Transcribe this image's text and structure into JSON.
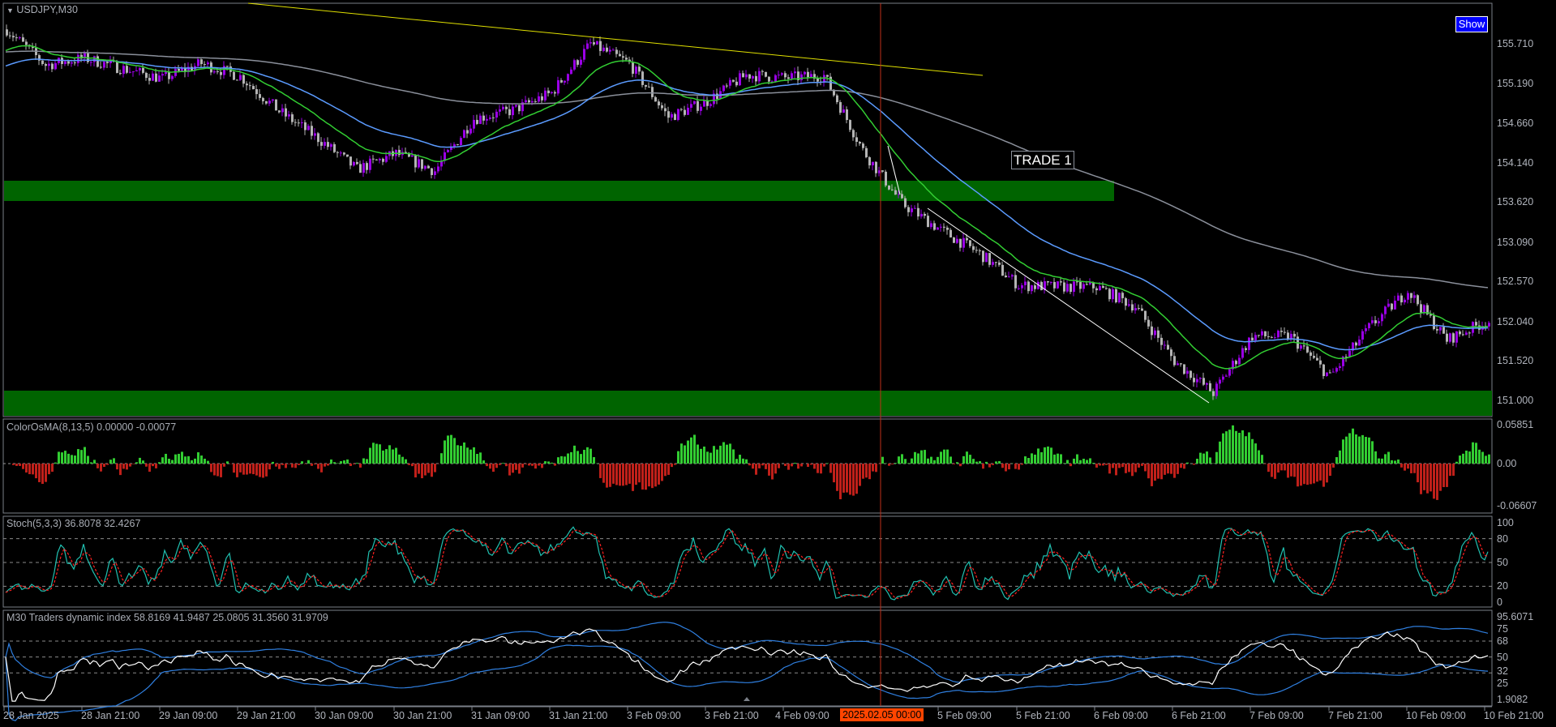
{
  "window": {
    "symbol_title": "USDJPY,M30",
    "show_button": "Show"
  },
  "annotations": {
    "trade_label": "TRADE 1",
    "cursor_time": "2025.02.05 00:00"
  },
  "colors": {
    "bull_candle": "#9a00e6",
    "bear_candle": "#b4b4b4",
    "ema_fast": "#32cd32",
    "ema_mid": "#5b9bff",
    "ema_slow": "#8a8f9a",
    "zone": "#006400",
    "trendline_upper": "#e0e000",
    "trendline_lower": "#ffffff",
    "vline": "#c0301a",
    "osma_up": "#32cd32",
    "osma_down": "#c0201a",
    "stoch_main": "#20c0b0",
    "stoch_signal": "#ff2020",
    "tdi_price": "#ffffff",
    "tdi_bands": "#2f7fe0"
  },
  "chart_data": [
    {
      "type": "candlestick",
      "title": "USDJPY,M30",
      "timeframe": "M30",
      "x_tick_labels": [
        "28 Jan 2025",
        "28 Jan 21:00",
        "29 Jan 09:00",
        "29 Jan 21:00",
        "30 Jan 09:00",
        "30 Jan 21:00",
        "31 Jan 09:00",
        "31 Jan 21:00",
        "3 Feb 09:00",
        "3 Feb 21:00",
        "4 Feb 09:00",
        "5 Feb 09:00",
        "5 Feb 21:00",
        "6 Feb 09:00",
        "6 Feb 21:00",
        "7 Feb 09:00",
        "7 Feb 21:00",
        "10 Feb 09:00",
        "10 Feb 21:00"
      ],
      "y_tick_labels": [
        "155.710",
        "155.190",
        "154.660",
        "154.140",
        "153.620",
        "153.090",
        "152.570",
        "152.040",
        "151.520",
        "151.000"
      ],
      "ylim": [
        151.0,
        155.71
      ],
      "approx_closes_every_6h": [
        155.9,
        155.43,
        155.52,
        155.38,
        155.25,
        155.45,
        155.28,
        154.82,
        154.46,
        154.05,
        154.26,
        154.03,
        154.72,
        154.83,
        155.06,
        155.71,
        155.45,
        154.74,
        154.95,
        155.3,
        155.26,
        155.29,
        154.3,
        153.6,
        153.25,
        152.94,
        152.52,
        152.5,
        152.5,
        152.24,
        151.52,
        151.1,
        151.85,
        151.84,
        151.31,
        151.96,
        152.45,
        151.8,
        152.04,
        152.0
      ],
      "zones": [
        {
          "from": 153.62,
          "to": 153.93
        },
        {
          "from": 150.9,
          "to": 151.25
        }
      ],
      "moving_averages": [
        "fast",
        "mid",
        "slow"
      ]
    },
    {
      "type": "bar",
      "title": "ColorOsMA(8,13,5) 0.00000 -0.00077",
      "y_tick_labels": [
        "0.05851",
        "0.00",
        "-0.06607"
      ],
      "ylim": [
        -0.06607,
        0.05851
      ]
    },
    {
      "type": "line",
      "title": "Stoch(5,3,3) 36.8078 32.4267",
      "y_tick_labels": [
        "100",
        "80",
        "50",
        "20",
        "0"
      ],
      "levels": [
        80,
        50,
        20
      ],
      "ylim": [
        0,
        100
      ]
    },
    {
      "type": "line",
      "title": "M30  Traders dynamic index 58.8169 41.9487 25.0805 31.3560 31.9709",
      "y_tick_labels": [
        "95.6071",
        "75",
        "68",
        "50",
        "32",
        "25",
        "1.9082"
      ],
      "levels": [
        68,
        50,
        32
      ],
      "ylim": [
        1.9082,
        95.6071
      ]
    }
  ]
}
